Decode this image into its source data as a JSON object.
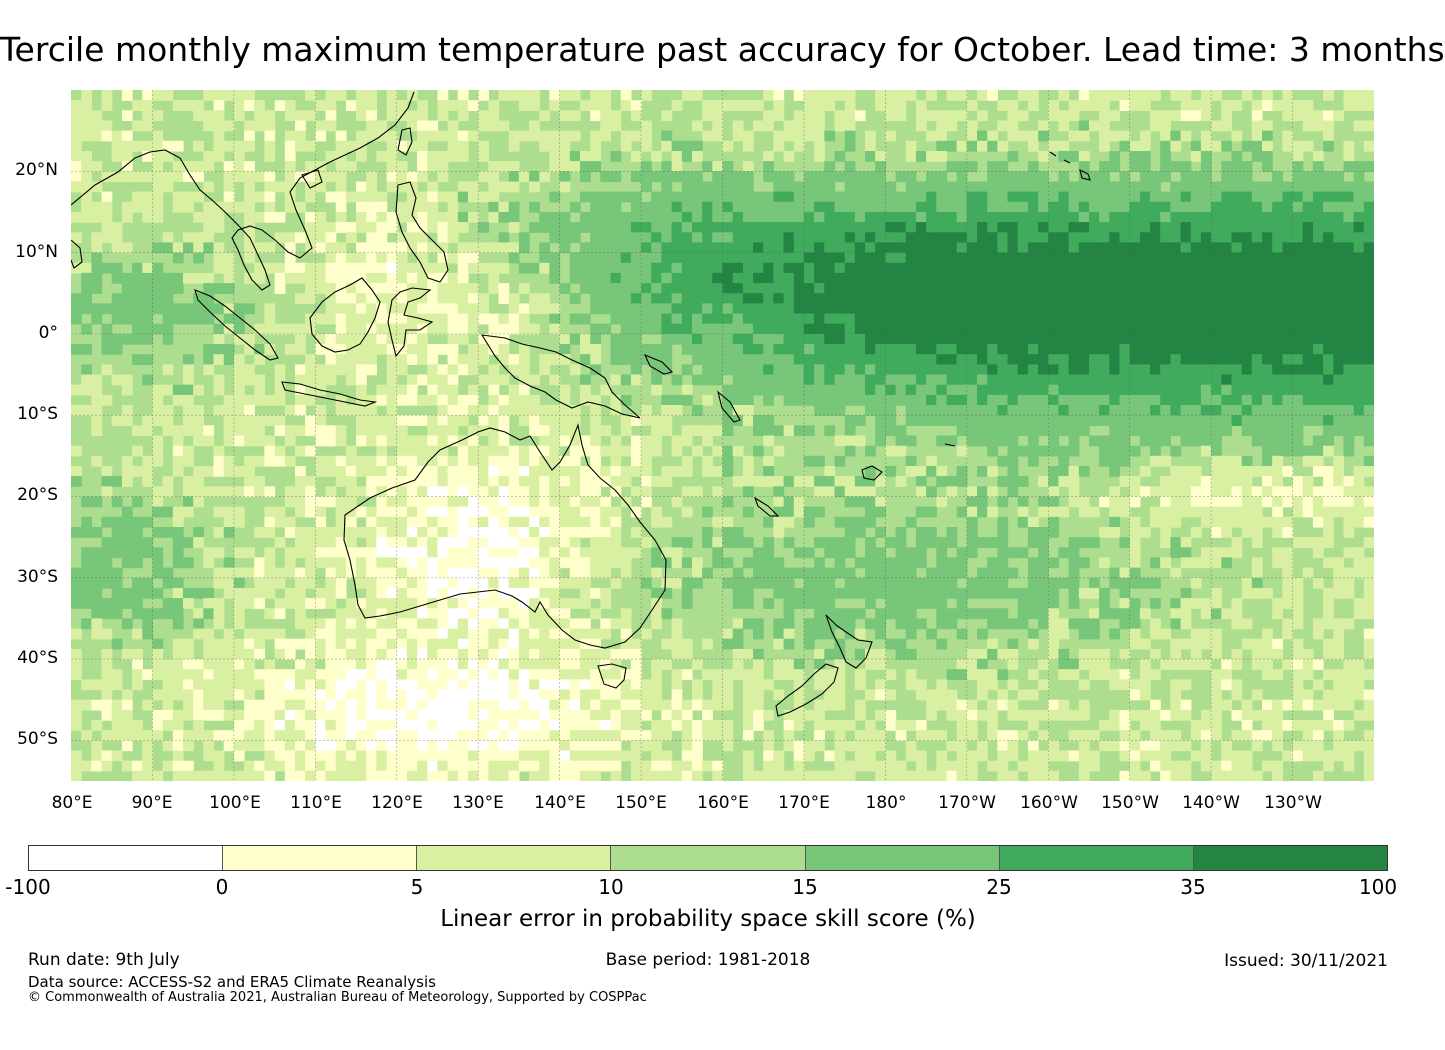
{
  "title": "Tercile monthly maximum temperature past accuracy for October. Lead time: 3 months",
  "map": {
    "latitude_labels": [
      "20°N",
      "10°N",
      "0°",
      "10°S",
      "20°S",
      "30°S",
      "40°S",
      "50°S"
    ],
    "longitude_labels": [
      "80°E",
      "90°E",
      "100°E",
      "110°E",
      "120°E",
      "130°E",
      "140°E",
      "150°E",
      "160°E",
      "170°E",
      "180°",
      "170°W",
      "160°W",
      "150°W",
      "140°W",
      "130°W"
    ],
    "lat_range": [
      -55,
      30
    ],
    "lon_range": [
      80,
      240
    ],
    "gridlines": true
  },
  "legend": {
    "label": "Linear error in probability space skill score (%)",
    "ticks": [
      "-100",
      "0",
      "5",
      "10",
      "15",
      "25",
      "35",
      "100"
    ],
    "colors": [
      "#ffffff",
      "#ffffcc",
      "#d9f0a3",
      "#addd8e",
      "#78c679",
      "#41ab5d",
      "#238443"
    ]
  },
  "footer": {
    "run_date": "Run date: 9th July",
    "base_period": "Base period: 1981-2018",
    "issued": "Issued: 30/11/2021",
    "data_source": "Data source: ACCESS-S2 and ERA5 Climate Reanalysis",
    "copyright": "© Commonwealth of Australia 2021, Australian Bureau of Meteorology, Supported by COSPPac"
  }
}
